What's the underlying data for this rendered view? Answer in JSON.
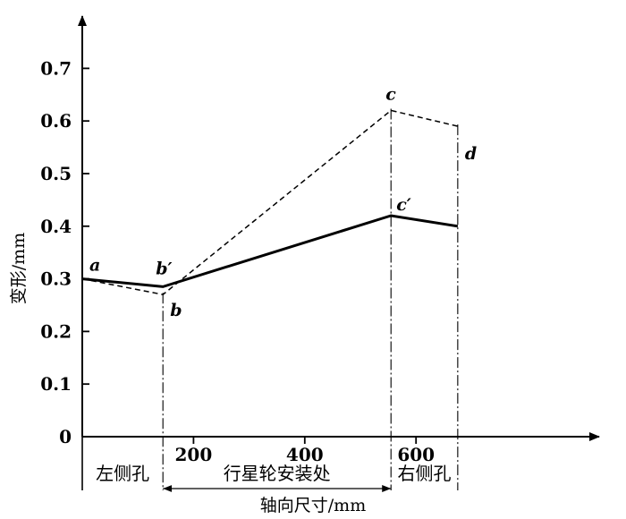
{
  "chart_data": {
    "type": "line",
    "title": "",
    "xlabel": "轴向尺寸/mm",
    "ylabel": "变形/mm",
    "xlim": [
      0,
      680
    ],
    "ylim": [
      0,
      0.8
    ],
    "x_ticks": [
      200,
      400,
      600
    ],
    "x_tick_labels": [
      "200",
      "400",
      "600"
    ],
    "y_ticks": [
      0,
      0.1,
      0.2,
      0.3,
      0.4,
      0.5,
      0.6,
      0.7
    ],
    "y_tick_labels": [
      "0",
      "0.1",
      "0.2",
      "0.3",
      "0.4",
      "0.5",
      "0.6",
      "0.7"
    ],
    "grid": false,
    "series": [
      {
        "style": "solid",
        "points": [
          {
            "x": 0,
            "y": 0.3,
            "label": "a"
          },
          {
            "x": 145,
            "y": 0.285,
            "label": "b′"
          },
          {
            "x": 555,
            "y": 0.42,
            "label": "c′"
          },
          {
            "x": 675,
            "y": 0.4,
            "label": ""
          }
        ]
      },
      {
        "style": "dashed",
        "points": [
          {
            "x": 0,
            "y": 0.3,
            "label": ""
          },
          {
            "x": 145,
            "y": 0.27,
            "label": "b"
          },
          {
            "x": 555,
            "y": 0.62,
            "label": "c"
          },
          {
            "x": 675,
            "y": 0.59,
            "label": "d"
          }
        ]
      }
    ],
    "vertical_markers": [
      145,
      555,
      675
    ],
    "regions": [
      {
        "from": 0,
        "to": 145,
        "label": "左侧孔"
      },
      {
        "from": 145,
        "to": 555,
        "label": "行星轮安装处"
      },
      {
        "from": 555,
        "to": 675,
        "label": "右侧孔"
      }
    ]
  }
}
